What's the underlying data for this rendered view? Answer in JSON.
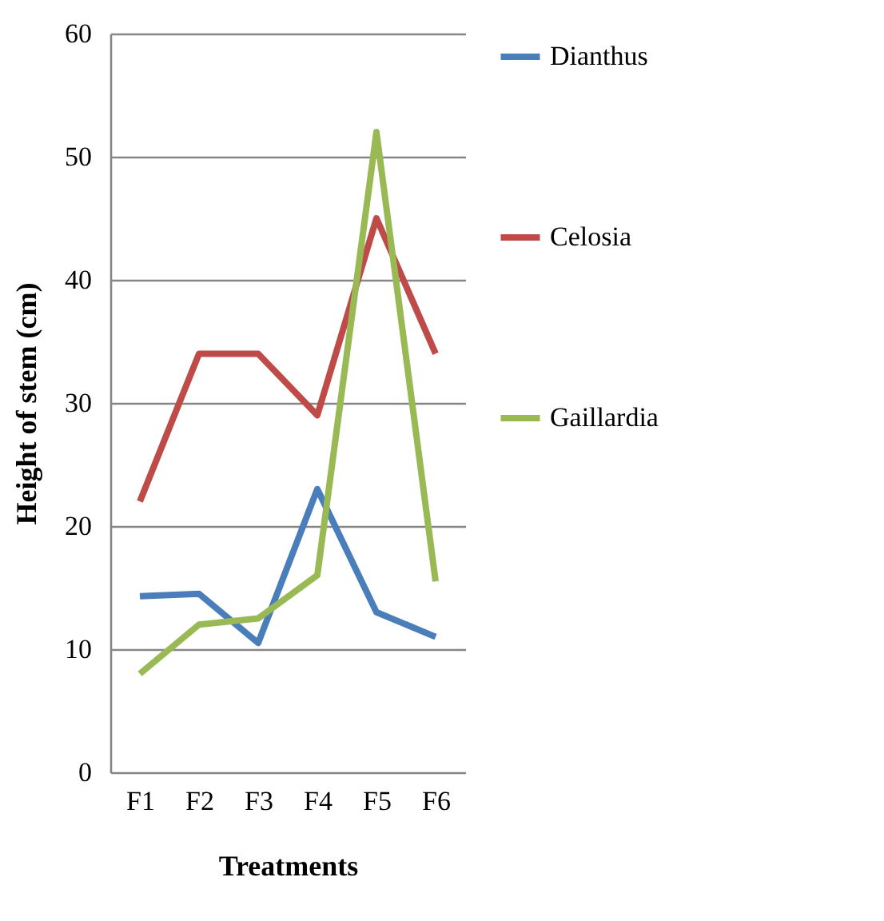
{
  "chart_data": {
    "type": "line",
    "xlabel": "Treatments",
    "ylabel": "Height of stem (cm)",
    "categories": [
      "F1",
      "F2",
      "F3",
      "F4",
      "F5",
      "F6"
    ],
    "series": [
      {
        "name": "Dianthus",
        "color": "#4a7ebb",
        "values": [
          14.3,
          14.5,
          10.5,
          23,
          13,
          11
        ]
      },
      {
        "name": "Celosia",
        "color": "#be4b48",
        "values": [
          22,
          34,
          34,
          29,
          45,
          34
        ]
      },
      {
        "name": "Gaillardia",
        "color": "#98b954",
        "values": [
          8,
          12,
          12.5,
          16,
          52,
          15.5
        ]
      }
    ],
    "ylim": [
      0,
      60
    ],
    "yticks": [
      0,
      10,
      20,
      30,
      40,
      50,
      60
    ],
    "grid": "y",
    "legend": "right"
  }
}
